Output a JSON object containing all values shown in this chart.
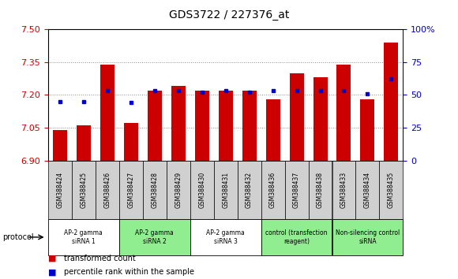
{
  "title": "GDS3722 / 227376_at",
  "samples": [
    "GSM388424",
    "GSM388425",
    "GSM388426",
    "GSM388427",
    "GSM388428",
    "GSM388429",
    "GSM388430",
    "GSM388431",
    "GSM388432",
    "GSM388436",
    "GSM388437",
    "GSM388438",
    "GSM388433",
    "GSM388434",
    "GSM388435"
  ],
  "transformed_count": [
    7.04,
    7.06,
    7.34,
    7.07,
    7.22,
    7.24,
    7.22,
    7.22,
    7.22,
    7.18,
    7.3,
    7.28,
    7.34,
    7.18,
    7.44
  ],
  "percentile_rank": [
    45,
    45,
    53,
    44,
    53,
    53,
    52,
    53,
    52,
    53,
    53,
    53,
    53,
    51,
    62
  ],
  "ymin": 6.9,
  "ymax": 7.5,
  "y2min": 0,
  "y2max": 100,
  "yticks": [
    6.9,
    7.05,
    7.2,
    7.35,
    7.5
  ],
  "y2ticks": [
    0,
    25,
    50,
    75,
    100
  ],
  "bar_color": "#cc0000",
  "dot_color": "#0000cc",
  "left_tick_color": "#cc0000",
  "right_tick_color": "#0000cc",
  "groups": [
    {
      "label": "AP-2 gamma\nsiRNA 1",
      "start": 0,
      "end": 3,
      "color": "#ffffff"
    },
    {
      "label": "AP-2 gamma\nsiRNA 2",
      "start": 3,
      "end": 6,
      "color": "#90ee90"
    },
    {
      "label": "AP-2 gamma\nsiRNA 3",
      "start": 6,
      "end": 9,
      "color": "#ffffff"
    },
    {
      "label": "control (transfection\nreagent)",
      "start": 9,
      "end": 12,
      "color": "#90ee90"
    },
    {
      "label": "Non-silencing control\nsiRNA",
      "start": 12,
      "end": 15,
      "color": "#90ee90"
    }
  ],
  "protocol_label": "protocol",
  "legend_red": "transformed count",
  "legend_blue": "percentile rank within the sample",
  "sample_box_color": "#d0d0d0"
}
